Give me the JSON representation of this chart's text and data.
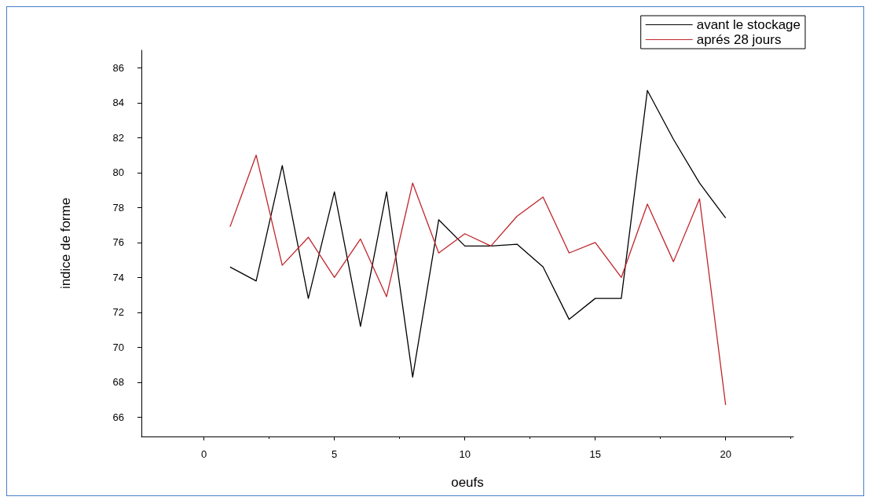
{
  "chart_data": {
    "type": "line",
    "xlabel": "oeufs",
    "ylabel": "indice de forme",
    "x": [
      1,
      2,
      3,
      4,
      5,
      6,
      7,
      8,
      9,
      10,
      11,
      12,
      13,
      14,
      15,
      16,
      17,
      18,
      19,
      20
    ],
    "series": [
      {
        "name": "avant le stockage",
        "color": "#000000",
        "values": [
          74.6,
          73.8,
          80.4,
          72.8,
          78.9,
          71.2,
          78.9,
          68.3,
          77.3,
          75.8,
          75.8,
          75.9,
          74.6,
          71.6,
          72.8,
          72.8,
          84.7,
          81.9,
          79.4,
          77.4
        ]
      },
      {
        "name": "aprés 28 jours",
        "color": "#c0262c",
        "values": [
          76.9,
          81.0,
          74.7,
          76.3,
          74.0,
          76.2,
          72.9,
          79.4,
          75.4,
          76.5,
          75.8,
          77.5,
          78.6,
          75.4,
          76.0,
          74.0,
          78.2,
          74.9,
          78.5,
          66.7
        ]
      }
    ],
    "xlim": [
      -2.4,
      22.6
    ],
    "xticks": [
      0,
      5,
      10,
      15,
      20
    ],
    "ylim": [
      64.9,
      87
    ],
    "yticks": [
      66,
      68,
      70,
      72,
      74,
      76,
      78,
      80,
      82,
      84,
      86
    ],
    "grid": false,
    "legend": "top right",
    "marker": "none",
    "line_style": "solid"
  }
}
